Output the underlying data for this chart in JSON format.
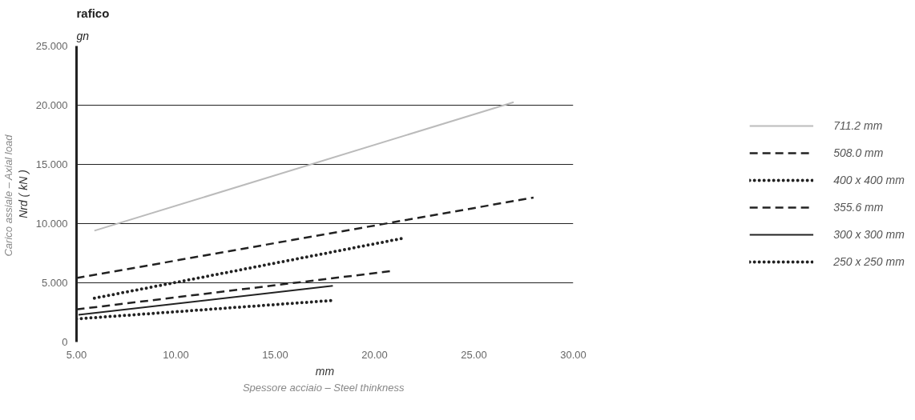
{
  "chart_data": {
    "type": "line",
    "title": "rafico",
    "subtitle": "gn",
    "xlabel": "mm\nSpessore acciaio  – Steel thinkness",
    "ylabel": "Nrd ( kN )\nCarico assiale  – Axial load",
    "xlim": [
      5,
      30
    ],
    "xticks": [
      {
        "value": 5,
        "label": "5.00"
      },
      {
        "value": 10,
        "label": "10.00"
      },
      {
        "value": 15,
        "label": "15.00"
      },
      {
        "value": 20,
        "label": "20.00"
      },
      {
        "value": 25,
        "label": "25.00"
      },
      {
        "value": 30,
        "label": "30.00"
      }
    ],
    "ylim": [
      0,
      25
    ],
    "yticks": [
      0,
      {
        "value": 5,
        "label": "5.000"
      },
      {
        "value": 10,
        "label": "10.000"
      },
      {
        "value": 15,
        "label": "15.000"
      },
      {
        "value": 20,
        "label": "20.000"
      },
      {
        "value": 25,
        "label": "25.000"
      }
    ],
    "grid": "y",
    "legend": "right",
    "series": [
      {
        "name": "711.2 mm",
        "color": "#bbbbbb",
        "line_style": "solid",
        "x": [
          5.9,
          27
        ],
        "values": [
          9.4,
          20.25
        ]
      },
      {
        "name": "508.0 mm",
        "color": "#222222",
        "line_style": "dashed",
        "x": [
          5,
          28
        ],
        "values": [
          5.4,
          12.2
        ]
      },
      {
        "name": "400 x 400 mm",
        "color": "#222222",
        "line_style": "dotted",
        "x": [
          5.9,
          21.4
        ],
        "values": [
          3.7,
          8.75
        ]
      },
      {
        "name": "355.6 mm",
        "color": "#222222",
        "line_style": "dashed",
        "x": [
          5,
          20.9
        ],
        "values": [
          2.75,
          6.0
        ]
      },
      {
        "name": "300 x 300 mm",
        "color": "#222222",
        "line_style": "solid",
        "x": [
          5.1,
          17.9
        ],
        "values": [
          2.3,
          4.75
        ]
      },
      {
        "name": "250 x 250 mm",
        "color": "#222222",
        "line_style": "dotted",
        "x": [
          5,
          17.8
        ],
        "values": [
          1.95,
          3.5
        ]
      }
    ]
  }
}
